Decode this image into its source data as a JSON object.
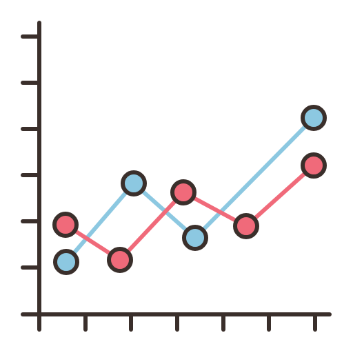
{
  "icon": {
    "name": "line-chart-icon",
    "style": "outlined-filled",
    "colors": {
      "outline": "#3a2f2b",
      "background": "#ffffff",
      "series_blue": "#8cc8e1",
      "series_red": "#f06a7a"
    }
  },
  "chart_data": {
    "type": "line",
    "x": [
      1,
      2,
      3,
      4,
      5,
      6
    ],
    "series": [
      {
        "values": [
          1.1,
          2.8,
          1.7,
          null,
          null,
          4.2
        ]
      },
      {
        "values": [
          1.9,
          1.1,
          2.6,
          null,
          1.9,
          3.2
        ]
      }
    ],
    "xlim": [
      0,
      6
    ],
    "ylim": [
      0,
      6
    ],
    "grid": false,
    "legend": "none",
    "title": "",
    "xlabel": "",
    "ylabel": ""
  }
}
